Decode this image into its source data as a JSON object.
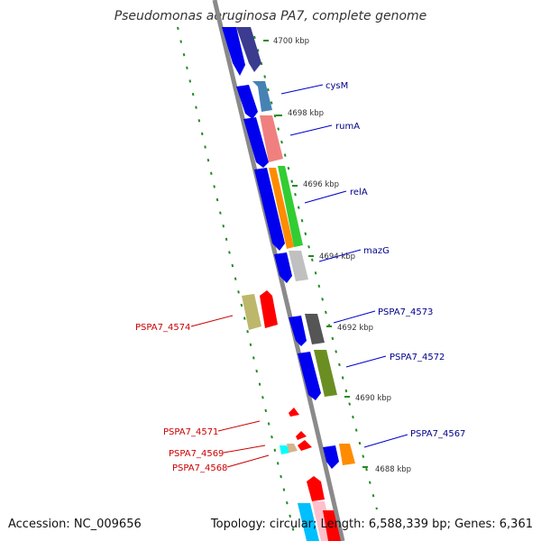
{
  "title": "Pseudomonas aeruginosa PA7, complete genome",
  "footer": {
    "accession": "Accession: NC_009656",
    "stats": "Topology: circular; Length: 6,588,339 bp; Genes: 6,361"
  },
  "colors": {
    "backbone": "#808080",
    "dots": "#228b22",
    "forward_label": "#00008b",
    "reverse_label": "#cc0000"
  },
  "ticks": [
    "4700 kbp",
    "4698 kbp",
    "4696 kbp",
    "4694 kbp",
    "4692 kbp",
    "4690 kbp",
    "4688 kbp"
  ],
  "forward_labels": [
    "cysM",
    "rumA",
    "relA",
    "mazG",
    "PSPA7_4573",
    "PSPA7_4572",
    "PSPA7_4567"
  ],
  "reverse_labels": [
    "PSPA7_4574",
    "PSPA7_4571",
    "PSPA7_4569",
    "PSPA7_4568"
  ]
}
